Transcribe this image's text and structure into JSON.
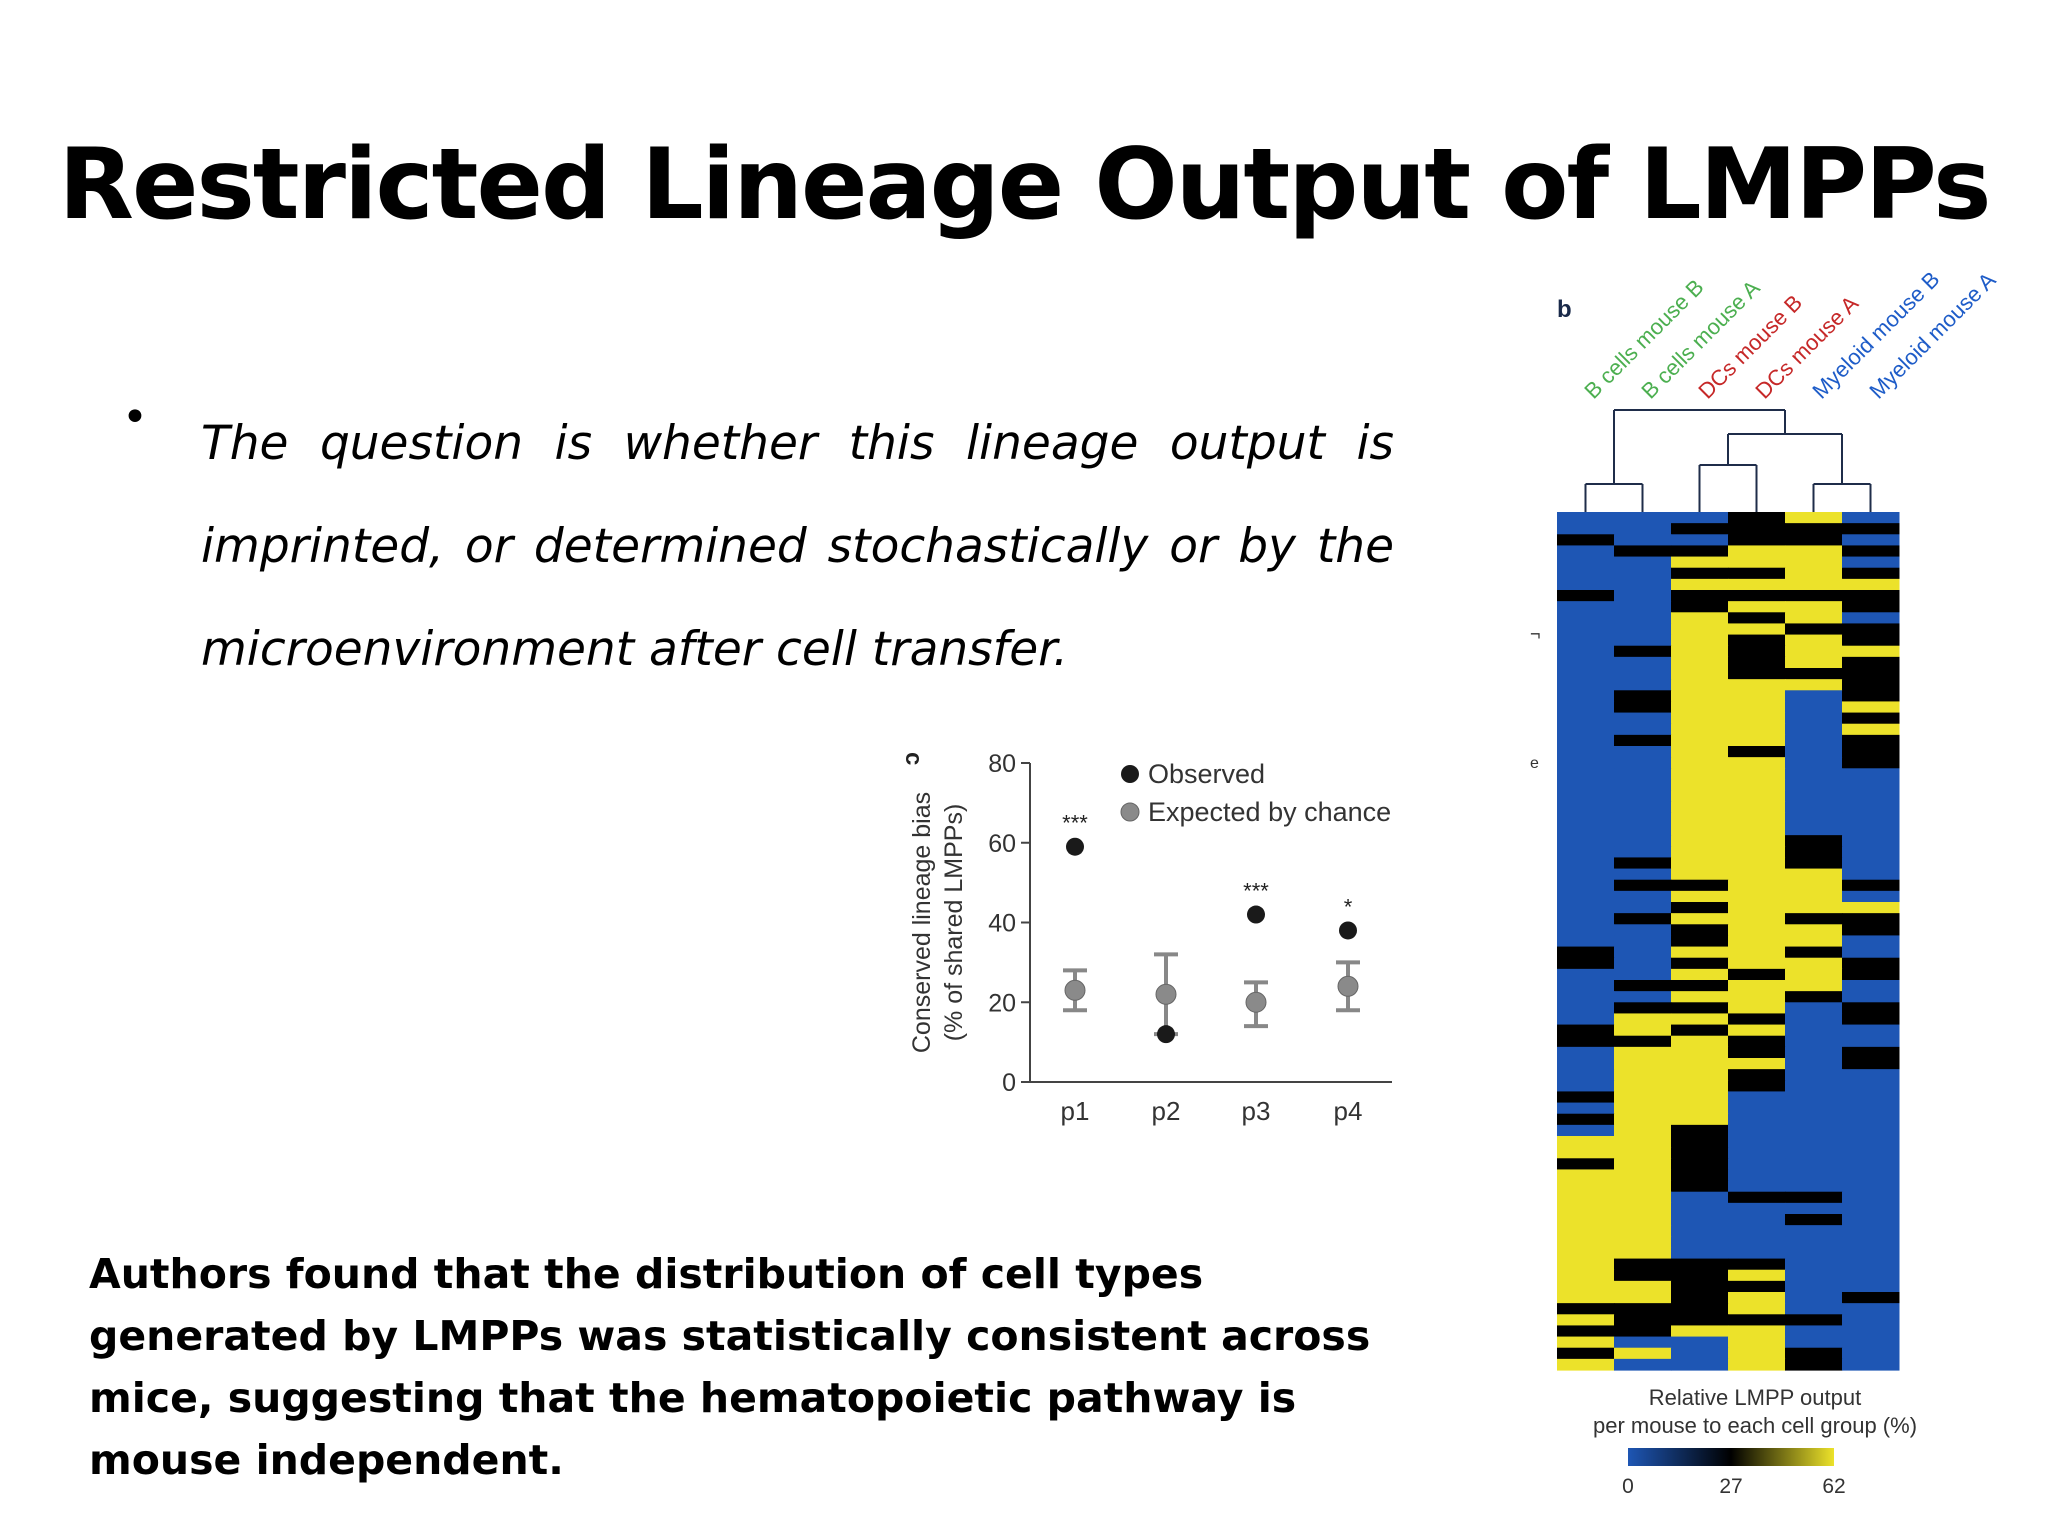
{
  "slide": {
    "title": "Restricted Lineage Output of LMPPs",
    "bullet": "The question is whether this lineage output is imprinted, or determined stochastically or by the microenvironment after cell transfer.",
    "summary": "Authors found that the distribution of cell types generated by LMPPs was statistically consistent across mice, suggesting that the hematopoietic pathway is mouse independent."
  },
  "chart_data": [
    {
      "panel": "c",
      "type": "scatter",
      "ylabel": "Conserved lineage bias",
      "ylabel2": "(% of shared LMPPs)",
      "ylim": [
        0,
        80
      ],
      "yticks": [
        0,
        20,
        40,
        60,
        80
      ],
      "categories": [
        "p1",
        "p2",
        "p3",
        "p4"
      ],
      "series": [
        {
          "name": "Observed",
          "color": "#1a1a1a",
          "values": [
            59,
            12,
            42,
            38
          ]
        },
        {
          "name": "Expected by chance",
          "color": "#8a8a8a",
          "values": [
            23,
            22,
            20,
            24
          ],
          "err_low": [
            18,
            12,
            14,
            18
          ],
          "err_high": [
            28,
            32,
            25,
            30
          ]
        }
      ],
      "significance": [
        "***",
        "",
        "***",
        "*"
      ],
      "legend_position": "top-right"
    },
    {
      "panel": "b",
      "type": "heatmap",
      "columns": [
        {
          "label": "B cells mouse B",
          "color": "#4caf50"
        },
        {
          "label": "B cells mouse A",
          "color": "#4caf50"
        },
        {
          "label": "DCs mouse B",
          "color": "#c62828"
        },
        {
          "label": "DCs mouse A",
          "color": "#c62828"
        },
        {
          "label": "Myeloid mouse B",
          "color": "#1e5cc8"
        },
        {
          "label": "Myeloid mouse A",
          "color": "#1e5cc8"
        }
      ],
      "colorbar_title_line1": "Relative LMPP output",
      "colorbar_title_line2": "per mouse to each cell group (%)",
      "colorbar_ticks": [
        "0",
        "27",
        "62"
      ],
      "color_scale": [
        "#1e56b4",
        "#000000",
        "#ece22a"
      ],
      "side_marks": [
        "¬",
        "e"
      ],
      "rows": [
        [
          0,
          0,
          0,
          1,
          2,
          0
        ],
        [
          0,
          0,
          1,
          1,
          1,
          1
        ],
        [
          1,
          0,
          0,
          1,
          1,
          0
        ],
        [
          0,
          1,
          1,
          2,
          2,
          1
        ],
        [
          0,
          0,
          2,
          2,
          2,
          0
        ],
        [
          0,
          0,
          1,
          1,
          2,
          1
        ],
        [
          0,
          0,
          2,
          2,
          2,
          2
        ],
        [
          1,
          0,
          1,
          1,
          1,
          1
        ],
        [
          0,
          0,
          1,
          2,
          2,
          1
        ],
        [
          0,
          0,
          2,
          1,
          2,
          0
        ],
        [
          0,
          0,
          2,
          2,
          1,
          1
        ],
        [
          0,
          0,
          2,
          1,
          2,
          1
        ],
        [
          0,
          1,
          2,
          1,
          2,
          2
        ],
        [
          0,
          0,
          2,
          1,
          2,
          1
        ],
        [
          0,
          0,
          2,
          1,
          1,
          1
        ],
        [
          0,
          0,
          2,
          2,
          2,
          1
        ],
        [
          0,
          1,
          2,
          2,
          0,
          1
        ],
        [
          0,
          1,
          2,
          2,
          0,
          2
        ],
        [
          0,
          0,
          2,
          2,
          0,
          1
        ],
        [
          0,
          0,
          2,
          2,
          0,
          2
        ],
        [
          0,
          1,
          2,
          2,
          0,
          1
        ],
        [
          0,
          0,
          2,
          1,
          0,
          1
        ],
        [
          0,
          0,
          2,
          2,
          0,
          1
        ],
        [
          0,
          0,
          2,
          2,
          0,
          0
        ],
        [
          0,
          0,
          2,
          2,
          0,
          0
        ],
        [
          0,
          0,
          2,
          2,
          0,
          0
        ],
        [
          0,
          0,
          2,
          2,
          0,
          0
        ],
        [
          0,
          0,
          2,
          2,
          0,
          0
        ],
        [
          0,
          0,
          2,
          2,
          0,
          0
        ],
        [
          0,
          0,
          2,
          2,
          1,
          0
        ],
        [
          0,
          0,
          2,
          2,
          1,
          0
        ],
        [
          0,
          1,
          2,
          2,
          1,
          0
        ],
        [
          0,
          0,
          2,
          2,
          2,
          0
        ],
        [
          0,
          1,
          1,
          2,
          2,
          1
        ],
        [
          0,
          0,
          2,
          2,
          2,
          0
        ],
        [
          0,
          0,
          1,
          2,
          2,
          2
        ],
        [
          0,
          1,
          2,
          2,
          1,
          1
        ],
        [
          0,
          0,
          1,
          2,
          2,
          1
        ],
        [
          0,
          0,
          1,
          2,
          2,
          0
        ],
        [
          1,
          0,
          2,
          2,
          1,
          0
        ],
        [
          1,
          0,
          1,
          2,
          2,
          1
        ],
        [
          0,
          0,
          2,
          1,
          2,
          1
        ],
        [
          0,
          1,
          1,
          2,
          2,
          0
        ],
        [
          0,
          0,
          2,
          2,
          1,
          0
        ],
        [
          0,
          1,
          1,
          2,
          0,
          1
        ],
        [
          0,
          2,
          2,
          1,
          0,
          1
        ],
        [
          1,
          2,
          1,
          2,
          0,
          0
        ],
        [
          1,
          1,
          2,
          1,
          0,
          0
        ],
        [
          0,
          2,
          2,
          1,
          0,
          1
        ],
        [
          0,
          2,
          2,
          2,
          0,
          1
        ],
        [
          0,
          2,
          2,
          1,
          0,
          0
        ],
        [
          0,
          2,
          2,
          1,
          0,
          0
        ],
        [
          1,
          2,
          2,
          0,
          0,
          0
        ],
        [
          0,
          2,
          2,
          0,
          0,
          0
        ],
        [
          1,
          2,
          2,
          0,
          0,
          0
        ],
        [
          0,
          2,
          1,
          0,
          0,
          0
        ],
        [
          2,
          2,
          1,
          0,
          0,
          0
        ],
        [
          2,
          2,
          1,
          0,
          0,
          0
        ],
        [
          1,
          2,
          1,
          0,
          0,
          0
        ],
        [
          2,
          2,
          1,
          0,
          0,
          0
        ],
        [
          2,
          2,
          1,
          0,
          0,
          0
        ],
        [
          2,
          2,
          0,
          1,
          1,
          0
        ],
        [
          2,
          2,
          0,
          0,
          0,
          0
        ],
        [
          2,
          2,
          0,
          0,
          1,
          0
        ],
        [
          2,
          2,
          0,
          0,
          0,
          0
        ],
        [
          2,
          2,
          0,
          0,
          0,
          0
        ],
        [
          2,
          2,
          0,
          0,
          0,
          0
        ],
        [
          2,
          1,
          1,
          1,
          0,
          0
        ],
        [
          2,
          1,
          1,
          2,
          0,
          0
        ],
        [
          2,
          2,
          1,
          1,
          0,
          0
        ],
        [
          2,
          2,
          1,
          2,
          0,
          1
        ],
        [
          1,
          1,
          1,
          2,
          0,
          0
        ],
        [
          2,
          1,
          1,
          1,
          1,
          0
        ],
        [
          1,
          1,
          2,
          2,
          0,
          0
        ],
        [
          2,
          0,
          0,
          2,
          0,
          0
        ],
        [
          1,
          2,
          0,
          2,
          1,
          0
        ],
        [
          2,
          0,
          0,
          2,
          1,
          0
        ]
      ]
    }
  ]
}
